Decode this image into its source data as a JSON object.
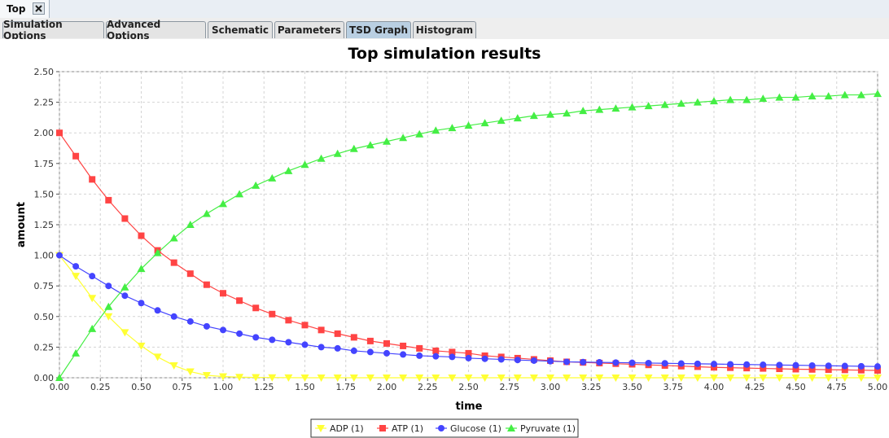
{
  "window": {
    "doc_tab_label": "Top",
    "close_glyph": "✕"
  },
  "tabs": [
    {
      "label": "Simulation Options"
    },
    {
      "label": "Advanced Options"
    },
    {
      "label": "Schematic"
    },
    {
      "label": "Parameters"
    },
    {
      "label": "TSD Graph",
      "active": true
    },
    {
      "label": "Histogram"
    }
  ],
  "chart_data": {
    "type": "line",
    "title": "Top simulation results",
    "xlabel": "time",
    "ylabel": "amount",
    "xlim": [
      0,
      5
    ],
    "ylim": [
      0,
      2.5
    ],
    "x_ticks": [
      "0.00",
      "0.25",
      "0.50",
      "0.75",
      "1.00",
      "1.25",
      "1.50",
      "1.75",
      "2.00",
      "2.25",
      "2.50",
      "2.75",
      "3.00",
      "3.25",
      "3.50",
      "3.75",
      "4.00",
      "4.25",
      "4.50",
      "4.75",
      "5.00"
    ],
    "y_ticks": [
      "0.00",
      "0.25",
      "0.50",
      "0.75",
      "1.00",
      "1.25",
      "1.50",
      "1.75",
      "2.00",
      "2.25",
      "2.50"
    ],
    "grid": true,
    "legend_position": "bottom",
    "x": [
      0,
      0.1,
      0.2,
      0.3,
      0.4,
      0.5,
      0.6,
      0.7,
      0.8,
      0.9,
      1.0,
      1.1,
      1.2,
      1.3,
      1.4,
      1.5,
      1.6,
      1.7,
      1.8,
      1.9,
      2.0,
      2.1,
      2.2,
      2.3,
      2.4,
      2.5,
      2.6,
      2.7,
      2.8,
      2.9,
      3.0,
      3.1,
      3.2,
      3.3,
      3.4,
      3.5,
      3.6,
      3.7,
      3.8,
      3.9,
      4.0,
      4.1,
      4.2,
      4.3,
      4.4,
      4.5,
      4.6,
      4.7,
      4.8,
      4.9,
      5.0
    ],
    "series": [
      {
        "name": "ADP (1)",
        "color": "#ffff33",
        "marker": "triangle-down",
        "values": [
          1.0,
          0.83,
          0.65,
          0.5,
          0.37,
          0.26,
          0.17,
          0.1,
          0.05,
          0.02,
          0.01,
          0.005,
          0.003,
          0.002,
          0.001,
          0,
          0,
          0,
          0,
          0,
          0,
          0,
          0,
          0,
          0,
          0,
          0,
          0,
          0,
          0,
          0,
          0,
          0,
          0,
          0,
          0,
          0,
          0,
          0,
          0,
          0,
          0,
          0,
          0,
          0,
          0,
          0,
          0,
          0,
          0,
          0
        ]
      },
      {
        "name": "ATP (1)",
        "color": "#ff4444",
        "marker": "square",
        "values": [
          2.0,
          1.81,
          1.62,
          1.45,
          1.3,
          1.16,
          1.04,
          0.94,
          0.85,
          0.76,
          0.69,
          0.63,
          0.57,
          0.52,
          0.47,
          0.43,
          0.39,
          0.36,
          0.33,
          0.3,
          0.28,
          0.26,
          0.24,
          0.22,
          0.21,
          0.2,
          0.18,
          0.17,
          0.16,
          0.15,
          0.14,
          0.13,
          0.125,
          0.12,
          0.115,
          0.11,
          0.105,
          0.1,
          0.095,
          0.09,
          0.085,
          0.082,
          0.079,
          0.076,
          0.073,
          0.07,
          0.068,
          0.066,
          0.064,
          0.062,
          0.06
        ]
      },
      {
        "name": "Glucose (1)",
        "color": "#4444ff",
        "marker": "circle",
        "values": [
          1.0,
          0.91,
          0.83,
          0.75,
          0.67,
          0.61,
          0.55,
          0.5,
          0.46,
          0.42,
          0.39,
          0.36,
          0.33,
          0.31,
          0.29,
          0.27,
          0.25,
          0.24,
          0.22,
          0.21,
          0.2,
          0.19,
          0.18,
          0.175,
          0.17,
          0.16,
          0.155,
          0.15,
          0.145,
          0.14,
          0.135,
          0.13,
          0.128,
          0.126,
          0.124,
          0.122,
          0.12,
          0.118,
          0.116,
          0.114,
          0.112,
          0.11,
          0.108,
          0.106,
          0.104,
          0.102,
          0.1,
          0.098,
          0.096,
          0.094,
          0.092
        ]
      },
      {
        "name": "Pyruvate (1)",
        "color": "#44ee44",
        "marker": "triangle",
        "values": [
          0,
          0.2,
          0.4,
          0.58,
          0.74,
          0.89,
          1.02,
          1.14,
          1.25,
          1.34,
          1.42,
          1.5,
          1.57,
          1.63,
          1.69,
          1.74,
          1.79,
          1.83,
          1.87,
          1.9,
          1.93,
          1.96,
          1.99,
          2.02,
          2.04,
          2.06,
          2.08,
          2.1,
          2.12,
          2.14,
          2.15,
          2.16,
          2.18,
          2.19,
          2.2,
          2.21,
          2.22,
          2.23,
          2.24,
          2.25,
          2.26,
          2.27,
          2.27,
          2.28,
          2.29,
          2.29,
          2.3,
          2.3,
          2.31,
          2.31,
          2.32
        ]
      }
    ]
  }
}
